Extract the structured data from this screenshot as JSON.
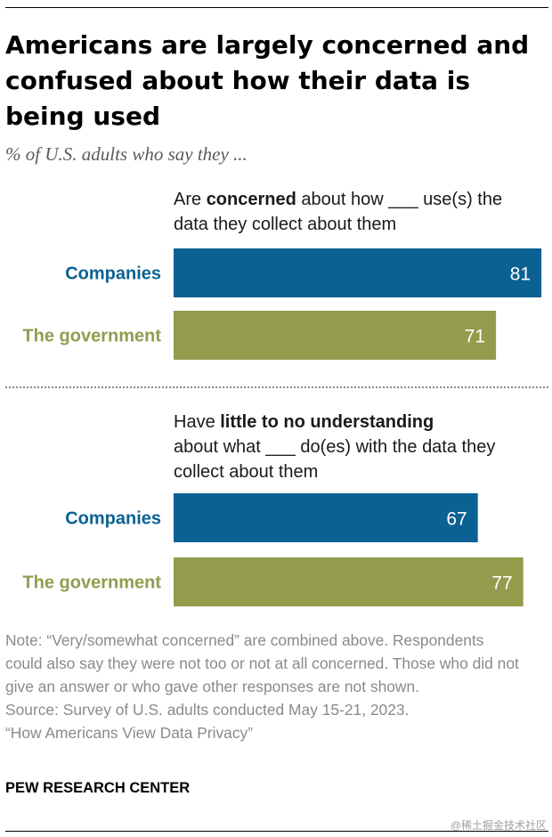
{
  "title": "Americans are largely concerned and confused about how their data is being used",
  "subtitle": "% of U.S. adults who say they ...",
  "chart_data": [
    {
      "type": "bar",
      "title_parts": [
        "Are ",
        "concerned",
        " about how ___ use(s) the data they collect about them"
      ],
      "categories": [
        "Companies",
        "The government"
      ],
      "values": [
        81,
        71
      ],
      "colors": [
        "#0b6193",
        "#949b4d"
      ],
      "xlim": [
        0,
        100
      ]
    },
    {
      "type": "bar",
      "title_parts": [
        "Have ",
        "little to no understanding",
        " about what ___ do(es) with the data they collect about them"
      ],
      "categories": [
        "Companies",
        "The government"
      ],
      "values": [
        67,
        77
      ],
      "colors": [
        "#0b6193",
        "#949b4d"
      ],
      "xlim": [
        0,
        100
      ]
    }
  ],
  "note": "Note: “Very/somewhat concerned” are combined above. Respondents could also say they were not too or not at all concerned. Those who did not give an answer or who gave other responses are not shown.",
  "source": "Source: Survey of U.S. adults conducted May 15-21, 2023.",
  "report": "“How Americans View Data Privacy”",
  "organization": "PEW RESEARCH CENTER",
  "watermark": "@稀土掘金技术社区"
}
